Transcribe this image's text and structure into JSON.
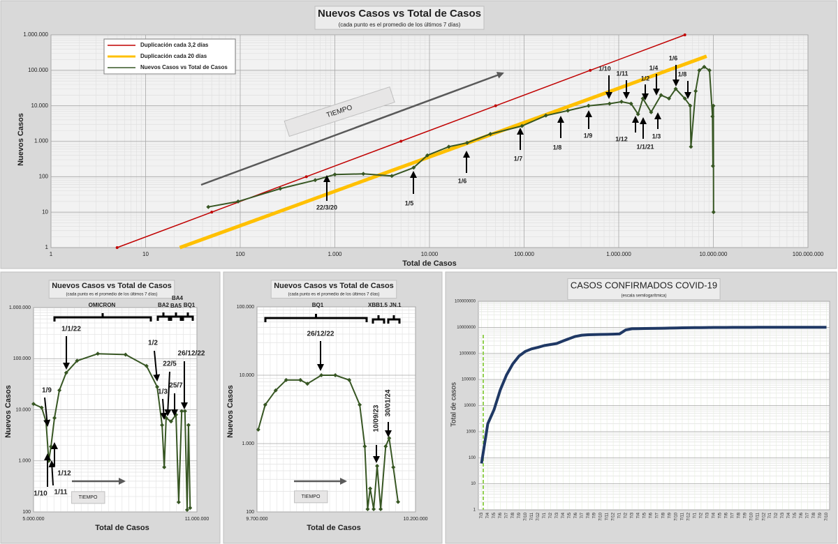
{
  "chart_data": [
    {
      "type": "line",
      "title": "Nuevos Casos vs Total de Casos",
      "subtitle": "(cada punto es el promedio de los últimos 7 días)",
      "x_label": "Total de Casos",
      "y_label": "Nuevos Casos",
      "xlog": true,
      "ylog": true,
      "grid": true,
      "legend": "upper left",
      "xlim": [
        1,
        100000000
      ],
      "ylim": [
        1,
        1000000
      ],
      "xticks": [
        1,
        10,
        100,
        {
          "value": 1000,
          "label": "1.000"
        },
        {
          "value": 10000,
          "label": "10.000"
        },
        {
          "value": 100000,
          "label": "100.000"
        },
        {
          "value": 1000000,
          "label": "1.000.000"
        },
        {
          "value": 10000000,
          "label": "10.000.000"
        },
        {
          "value": 100000000,
          "label": "100.000.000"
        }
      ],
      "yticks": [
        1,
        10,
        100,
        {
          "value": 1000,
          "label": "1.000"
        },
        {
          "value": 10000,
          "label": "10.000"
        },
        {
          "value": 100000,
          "label": "100.000"
        },
        {
          "value": 1000000,
          "label": "1.000.000"
        }
      ],
      "series": [
        {
          "name": "Duplicación cada 3,2 días",
          "color": "#c00000",
          "x": [
            5,
            50,
            500,
            5000,
            50000,
            500000,
            5000000
          ],
          "values": [
            1,
            10,
            100,
            1000,
            10000,
            100000,
            1000000
          ]
        },
        {
          "name": "Duplicación cada 20 días",
          "color": "#ffc000",
          "x": [
            23,
            230,
            2300,
            23000,
            230000,
            2300000,
            8500000
          ],
          "values": [
            1,
            9.3,
            87,
            810,
            7500,
            70000,
            250000
          ]
        },
        {
          "name": "Nuevos Casos vs Total de Casos",
          "color": "#375623",
          "x": [
            46,
            95,
            265,
            620,
            1000,
            2000,
            4000,
            6800,
            9500,
            16000,
            25000,
            44000,
            95000,
            170000,
            290000,
            480000,
            800000,
            1070000,
            1350000,
            1600000,
            1800000,
            2200000,
            2800000,
            3400000,
            4000000,
            5000000,
            5700000,
            5800000,
            6500000,
            7100000,
            8000000,
            9100000,
            9800000,
            9900000,
            10000000,
            10050000
          ],
          "values": [
            14,
            20,
            46,
            80,
            115,
            120,
            105,
            180,
            400,
            700,
            900,
            1600,
            2700,
            5300,
            7300,
            10000,
            11500,
            13000,
            11500,
            5800,
            16000,
            6600,
            20000,
            16000,
            30000,
            16000,
            10000,
            700,
            26000,
            100000,
            125000,
            100000,
            5000,
            200,
            10000,
            10
          ]
        }
      ],
      "annotations": [
        "1/10",
        "1/11",
        "1/4",
        "1/6",
        "1/2",
        "1/8",
        "22/3/20",
        "1/5",
        "1/6",
        "1/7",
        "1/8",
        "1/9",
        "1/12",
        "1/1/21",
        "1/3",
        "TIEMPO"
      ]
    },
    {
      "type": "line",
      "title": "Nuevos Casos vs Total de Casos",
      "subtitle": "(cada punto es el promedio de los últimos 7 días)",
      "x_label": "Total de Casos",
      "y_label": "Nuevos Casos",
      "ylog": true,
      "grid": true,
      "xlim": [
        5000000,
        11000000
      ],
      "ylim": [
        100,
        1000000
      ],
      "xticks": [
        {
          "value": 5000000,
          "label": "5.000.000"
        },
        {
          "value": 11000000,
          "label": "11.000.000"
        }
      ],
      "yticks": [
        100,
        {
          "value": 1000,
          "label": "1.000"
        },
        {
          "value": 10000,
          "label": "10.000"
        },
        {
          "value": 100000,
          "label": "100.000"
        },
        {
          "value": 1000000,
          "label": "1.000.000"
        }
      ],
      "series": [
        {
          "color": "#375623",
          "x": [
            5000000,
            5300000,
            5460000,
            5560000,
            5640000,
            5770000,
            5950000,
            6200000,
            6600000,
            7360000,
            8380000,
            9150000,
            9540000,
            9720000,
            9800000,
            9870000,
            10050000,
            10230000,
            10330000,
            10440000,
            10560000,
            10640000,
            10690000,
            10750000
          ],
          "values": [
            13000,
            11000,
            5900,
            1000,
            1900,
            6900,
            24000,
            53000,
            91000,
            125000,
            120000,
            72000,
            28000,
            5000,
            750,
            6900,
            5900,
            8000,
            155,
            9400,
            9400,
            110,
            5000,
            120
          ]
        }
      ],
      "annotations": [
        "OMICRON",
        "BA2",
        "BA4",
        "BA5",
        "BQ1",
        "1/1/22",
        "1/9",
        "1/12",
        "1/10",
        "1/11",
        "1/2",
        "1/3",
        "22/5",
        "25/7",
        "26/12/22",
        "TIEMPO"
      ]
    },
    {
      "type": "line",
      "title": "Nuevos Casos vs Total de Casos",
      "subtitle": "(cada punto es el promedio de los últimos 7 días)",
      "x_label": "Total de Casos",
      "y_label": "Nuevos Casos",
      "ylog": true,
      "grid": true,
      "xlim": [
        9700000,
        10200000
      ],
      "ylim": [
        100,
        100000
      ],
      "xticks": [
        {
          "value": 9700000,
          "label": "9.700.000"
        },
        {
          "value": 10200000,
          "label": "10.200.000"
        }
      ],
      "yticks": [
        100,
        {
          "value": 1000,
          "label": "1.000"
        },
        {
          "value": 10000,
          "label": "10.000"
        },
        {
          "value": 100000,
          "label": "100.000"
        }
      ],
      "series": [
        {
          "color": "#375623",
          "x": [
            9704000,
            9726000,
            9759000,
            9792000,
            9837000,
            9859000,
            9903000,
            9947000,
            9991000,
            10024000,
            10040000,
            10049000,
            10057000,
            10068000,
            10079000,
            10090000,
            10106000,
            10117000,
            10130000,
            10145000
          ],
          "values": [
            1600,
            3700,
            6000,
            8500,
            8500,
            7500,
            10000,
            10000,
            8500,
            3700,
            910,
            110,
            220,
            110,
            470,
            110,
            910,
            1200,
            450,
            140
          ]
        }
      ],
      "annotations": [
        "BQ1",
        "XBB1.5",
        "JN.1",
        "26/12/22",
        "10/09/23",
        "30/01/24",
        "TIEMPO"
      ]
    },
    {
      "type": "line",
      "title": "CASOS CONFIRMADOS COVID-19",
      "subtitle": "(escala semilogarítmica)",
      "y_label": "Total de casos",
      "ylog": true,
      "grid": true,
      "ylim": [
        1,
        100000000
      ],
      "yticks": [
        1,
        10,
        100,
        1000,
        10000,
        100000,
        1000000,
        10000000,
        100000000
      ],
      "categories": [
        "7/3",
        "7/4",
        "7/5",
        "7/6",
        "7/7",
        "7/8",
        "7/9",
        "7/10",
        "7/11",
        "7/12",
        "7/1",
        "7/2",
        "7/3",
        "7/4",
        "7/5",
        "7/6",
        "7/7",
        "7/8",
        "7/9",
        "7/10",
        "7/11",
        "7/12",
        "7/1",
        "7/2",
        "7/3",
        "7/4",
        "7/5",
        "7/6",
        "7/7",
        "7/8",
        "7/9",
        "7/10",
        "7/11",
        "7/12",
        "7/1",
        "7/2",
        "7/3",
        "7/4",
        "7/5",
        "7/6",
        "7/7",
        "7/8",
        "7/9",
        "7/10",
        "7/11",
        "7/12",
        "7/1",
        "7/2",
        "7/3",
        "7/4",
        "7/5",
        "7/6",
        "7/7",
        "7/8",
        "7/9",
        "7/10"
      ],
      "series": [
        {
          "color": "#1f3864",
          "values": [
            60,
            2000,
            7000,
            40000,
            150000,
            400000,
            800000,
            1200000,
            1500000,
            1700000,
            2000000,
            2200000,
            2400000,
            3000000,
            3700000,
            4500000,
            5000000,
            5200000,
            5300000,
            5350000,
            5400000,
            5500000,
            5600000,
            8000000,
            8800000,
            8950000,
            9050000,
            9100000,
            9200000,
            9300000,
            9400000,
            9500000,
            9600000,
            9700000,
            9750000,
            9800000,
            9850000,
            9900000,
            9920000,
            9940000,
            9960000,
            9980000,
            10000000,
            10010000,
            10020000,
            10030000,
            10040000,
            10050000,
            10060000,
            10070000,
            10080000,
            10090000,
            10095000,
            10100000,
            10100000,
            10100000
          ]
        }
      ]
    }
  ]
}
